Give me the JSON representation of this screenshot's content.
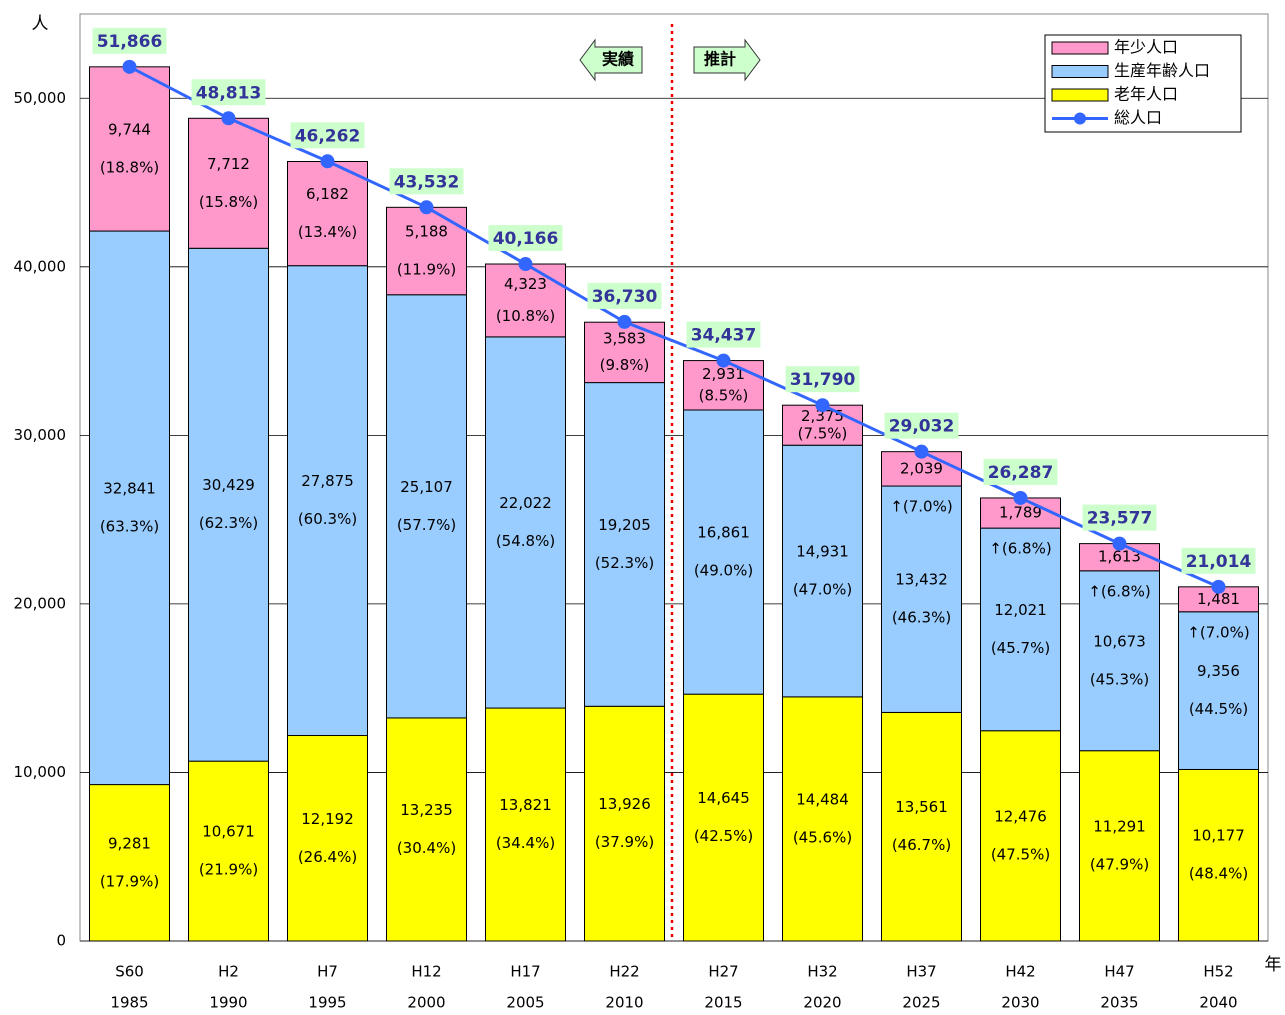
{
  "chart_data": {
    "type": "bar",
    "y_label": "人",
    "x_label": "年",
    "categories": [
      "S60",
      "H2",
      "H7",
      "H12",
      "H17",
      "H22",
      "H27",
      "H32",
      "H37",
      "H42",
      "H47",
      "H52"
    ],
    "years": [
      "1985",
      "1990",
      "1995",
      "2000",
      "2005",
      "2010",
      "2015",
      "2020",
      "2025",
      "2030",
      "2035",
      "2040"
    ],
    "ylim": [
      0,
      55000
    ],
    "yticks": [
      0,
      {
        "value": 10000,
        "label": "10,000"
      },
      {
        "value": 20000,
        "label": "20,000"
      },
      {
        "value": 30000,
        "label": "30,000"
      },
      {
        "value": 40000,
        "label": "40,000"
      },
      {
        "value": 50000,
        "label": "50,000"
      }
    ],
    "grid": true,
    "annotations": [
      "実績",
      "推計"
    ],
    "series": [
      {
        "name": "年少人口",
        "color": "#ff99cc",
        "values": [
          9744,
          7712,
          6182,
          5188,
          4323,
          3583,
          2931,
          2375,
          2039,
          1789,
          1613,
          1481
        ],
        "value_labels": [
          "9,744",
          "7,712",
          "6,182",
          "5,188",
          "4,323",
          "3,583",
          "2,931",
          "2,375",
          "2,039",
          "1,789",
          "1,613",
          "1,481"
        ],
        "share_labels": [
          "(18.8%)",
          "(15.8%)",
          "(13.4%)",
          "(11.9%)",
          "(10.8%)",
          "(9.8%)",
          "(8.5%)",
          "(7.5%)",
          "↑(7.0%)",
          "↑(6.8%)",
          "↑(6.8%)",
          "↑(7.0%)"
        ]
      },
      {
        "name": "生産年齢人口",
        "color": "#99ccff",
        "values": [
          32841,
          30429,
          27875,
          25107,
          22022,
          19205,
          16861,
          14931,
          13432,
          12021,
          10673,
          9356
        ],
        "value_labels": [
          "32,841",
          "30,429",
          "27,875",
          "25,107",
          "22,022",
          "19,205",
          "16,861",
          "14,931",
          "13,432",
          "12,021",
          "10,673",
          "9,356"
        ],
        "share_labels": [
          "(63.3%)",
          "(62.3%)",
          "(60.3%)",
          "(57.7%)",
          "(54.8%)",
          "(52.3%)",
          "(49.0%)",
          "(47.0%)",
          "(46.3%)",
          "(45.7%)",
          "(45.3%)",
          "(44.5%)"
        ]
      },
      {
        "name": "老年人口",
        "color": "#ffff00",
        "values": [
          9281,
          10671,
          12192,
          13235,
          13821,
          13926,
          14645,
          14484,
          13561,
          12476,
          11291,
          10177
        ],
        "value_labels": [
          "9,281",
          "10,671",
          "12,192",
          "13,235",
          "13,821",
          "13,926",
          "14,645",
          "14,484",
          "13,561",
          "12,476",
          "11,291",
          "10,177"
        ],
        "share_labels": [
          "(17.9%)",
          "(21.9%)",
          "(26.4%)",
          "(30.4%)",
          "(34.4%)",
          "(37.9%)",
          "(42.5%)",
          "(45.6%)",
          "(46.7%)",
          "(47.5%)",
          "(47.9%)",
          "(48.4%)"
        ]
      },
      {
        "name": "総人口",
        "type": "line",
        "color": "#3366ff",
        "values": [
          51866,
          48813,
          46262,
          43532,
          40166,
          36730,
          34437,
          31790,
          29032,
          26287,
          23577,
          21014
        ],
        "value_labels": [
          "51,866",
          "48,813",
          "46,262",
          "43,532",
          "40,166",
          "36,730",
          "34,437",
          "31,790",
          "29,032",
          "26,287",
          "23,577",
          "21,014"
        ]
      }
    ]
  }
}
